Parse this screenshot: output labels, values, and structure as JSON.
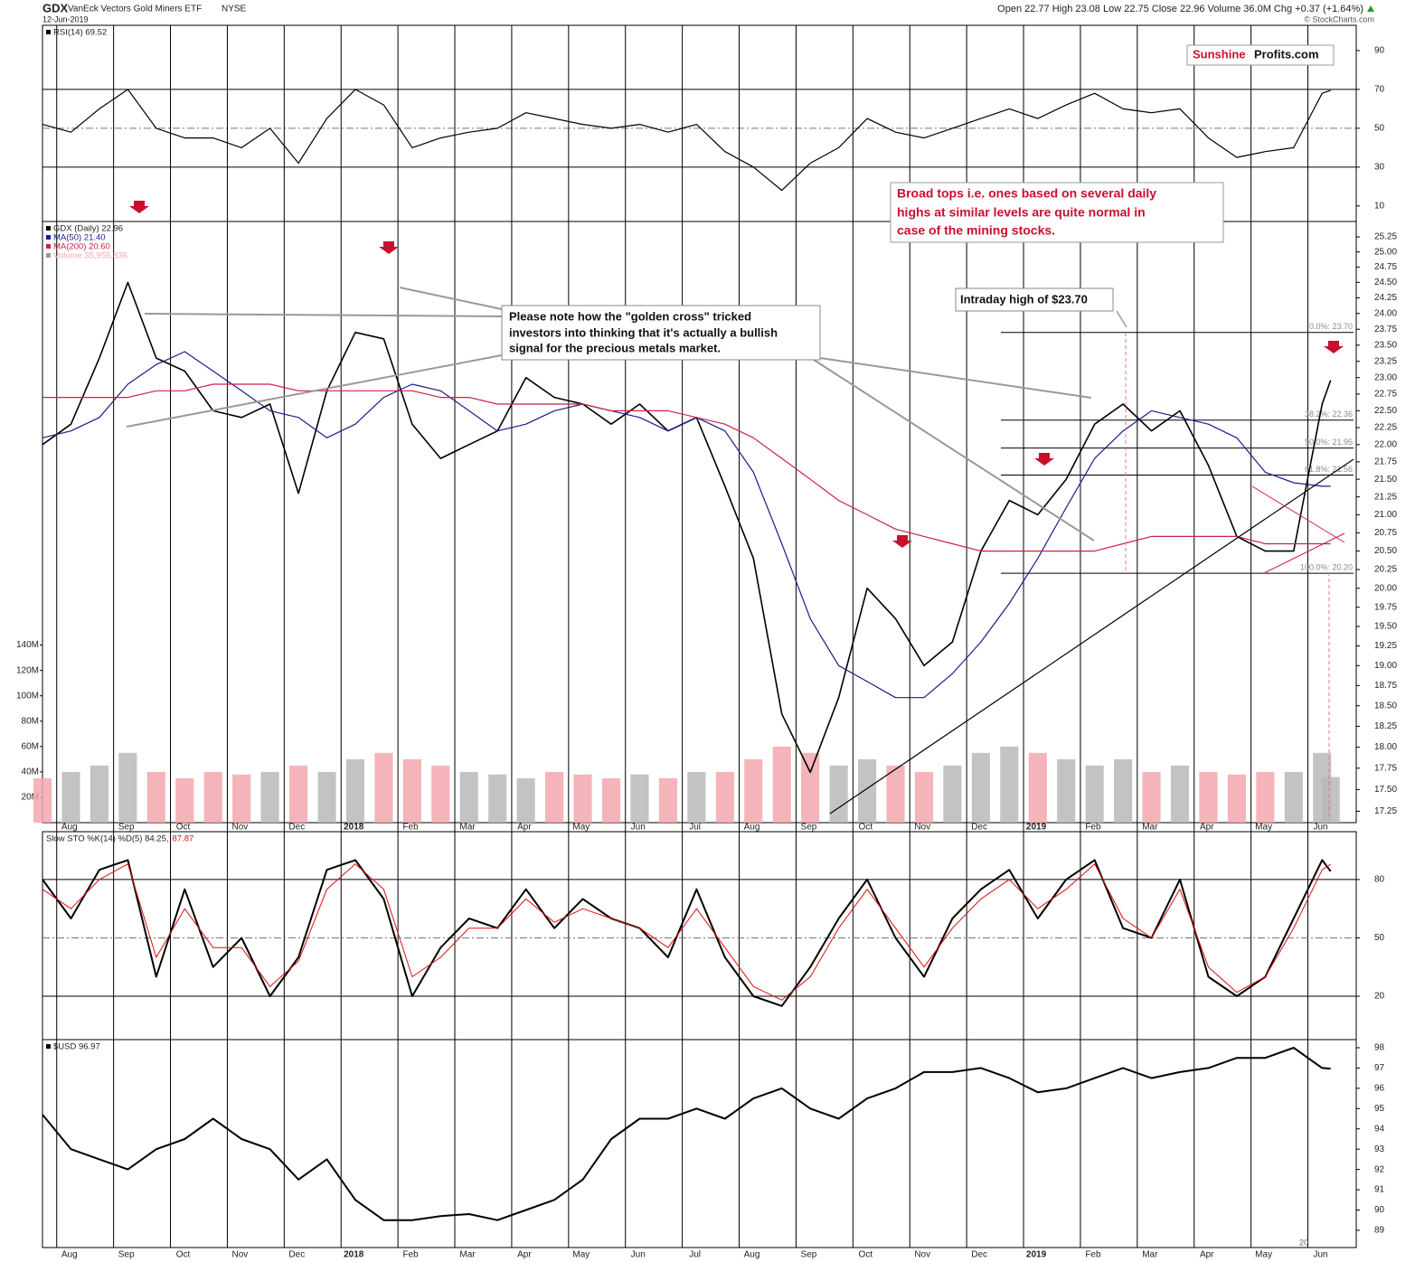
{
  "header": {
    "symbol": "GDX",
    "name": "VanEck Vectors Gold Miners ETF",
    "exchange": "NYSE",
    "date": "12-Jun-2019",
    "quote": "Open 22.77  High 23.08  Low 22.75  Close 22.96  Volume 36.0M  Chg +0.37 (+1.64%)",
    "source": "© StockCharts.com",
    "logo": [
      "Sunshine",
      "Profits.com"
    ],
    "footer": "20"
  },
  "chart_data": [
    {
      "type": "line",
      "xlim": [
        0.75,
        23.85
      ],
      "x": [
        0.75,
        1.25,
        1.75,
        2.25,
        2.75,
        3.25,
        3.75,
        4.25,
        4.75,
        5.25,
        5.75,
        6.25,
        6.75,
        7.25,
        7.75,
        8.25,
        8.75,
        9.25,
        9.75,
        10.25,
        10.75,
        11.25,
        11.75,
        12.25,
        12.75,
        13.25,
        13.75,
        14.25,
        14.75,
        15.25,
        15.75,
        16.25,
        16.75,
        17.25,
        17.75,
        18.25,
        18.75,
        19.25,
        19.75,
        20.25,
        20.75,
        21.25,
        21.75,
        22.25,
        22.75,
        23.25,
        23.4
      ],
      "ylim": [
        2,
        103
      ],
      "yticks": [
        10,
        30,
        50,
        70,
        90
      ],
      "reference_lines": [
        30,
        50,
        70
      ],
      "reference_styles": [
        "solid",
        "dashdot",
        "solid"
      ],
      "series": [
        {
          "name": "RSI(14) 69.52",
          "color": "#000000",
          "values": [
            52,
            48,
            60,
            70,
            50,
            45,
            45,
            40,
            50,
            32,
            55,
            70,
            62,
            40,
            45,
            48,
            50,
            58,
            55,
            52,
            50,
            52,
            48,
            52,
            38,
            30,
            18,
            32,
            40,
            55,
            48,
            45,
            50,
            55,
            60,
            55,
            62,
            68,
            60,
            58,
            60,
            45,
            35,
            38,
            40,
            68,
            69.52
          ]
        }
      ]
    },
    {
      "type": "line",
      "log": true,
      "xlim": [
        0.75,
        23.85
      ],
      "x": [
        0.75,
        1.25,
        1.75,
        2.25,
        2.75,
        3.25,
        3.75,
        4.25,
        4.75,
        5.25,
        5.75,
        6.25,
        6.75,
        7.25,
        7.75,
        8.25,
        8.75,
        9.25,
        9.75,
        10.25,
        10.75,
        11.25,
        11.75,
        12.25,
        12.75,
        13.25,
        13.75,
        14.25,
        14.75,
        15.25,
        15.75,
        16.25,
        16.75,
        17.25,
        17.75,
        18.25,
        18.75,
        19.25,
        19.75,
        20.25,
        20.75,
        21.25,
        21.75,
        22.25,
        22.75,
        23.25,
        23.4
      ],
      "xticks": [
        {
          "value": 1,
          "label": "Aug"
        },
        {
          "value": 2,
          "label": "Sep"
        },
        {
          "value": 3,
          "label": "Oct"
        },
        {
          "value": 4,
          "label": "Nov"
        },
        {
          "value": 5,
          "label": "Dec"
        },
        {
          "value": 6,
          "label": "2018"
        },
        {
          "value": 7,
          "label": "Feb"
        },
        {
          "value": 8,
          "label": "Mar"
        },
        {
          "value": 9,
          "label": "Apr"
        },
        {
          "value": 10,
          "label": "May"
        },
        {
          "value": 11,
          "label": "Jun"
        },
        {
          "value": 12,
          "label": "Jul"
        },
        {
          "value": 13,
          "label": "Aug"
        },
        {
          "value": 14,
          "label": "Sep"
        },
        {
          "value": 15,
          "label": "Oct"
        },
        {
          "value": 16,
          "label": "Nov"
        },
        {
          "value": 17,
          "label": "Dec"
        },
        {
          "value": 18,
          "label": "2019"
        },
        {
          "value": 19,
          "label": "Feb"
        },
        {
          "value": 20,
          "label": "Mar"
        },
        {
          "value": 21,
          "label": "Apr"
        },
        {
          "value": 22,
          "label": "May"
        },
        {
          "value": 23,
          "label": "Jun"
        }
      ],
      "ylim": [
        17.12,
        25.51
      ],
      "yticks": [
        17.25,
        {
          "value": 17.5,
          "label": "17.50"
        },
        17.75,
        {
          "value": 18,
          "label": "18.00"
        },
        18.25,
        {
          "value": 18.5,
          "label": "18.50"
        },
        18.75,
        {
          "value": 19,
          "label": "19.00"
        },
        19.25,
        {
          "value": 19.5,
          "label": "19.50"
        },
        19.75,
        {
          "value": 20,
          "label": "20.00"
        },
        20.25,
        {
          "value": 20.5,
          "label": "20.50"
        },
        20.75,
        {
          "value": 21,
          "label": "21.00"
        },
        21.25,
        {
          "value": 21.5,
          "label": "21.50"
        },
        21.75,
        {
          "value": 22,
          "label": "22.00"
        },
        22.25,
        {
          "value": 22.5,
          "label": "22.50"
        },
        22.75,
        {
          "value": 23,
          "label": "23.00"
        },
        23.25,
        {
          "value": 23.5,
          "label": "23.50"
        },
        23.75,
        {
          "value": 24,
          "label": "24.00"
        },
        24.25,
        {
          "value": 24.5,
          "label": "24.50"
        },
        24.75,
        {
          "value": 25,
          "label": "25.00"
        },
        25.25
      ],
      "y2lim": [
        0,
        474000000
      ],
      "y2ticks": [
        {
          "value": 20000000,
          "label": "20M"
        },
        {
          "value": 40000000,
          "label": "40M"
        },
        {
          "value": 60000000,
          "label": "60M"
        },
        {
          "value": 80000000,
          "label": "80M"
        },
        {
          "value": 100000000,
          "label": "100M"
        },
        {
          "value": 120000000,
          "label": "120M"
        },
        {
          "value": 140000000,
          "label": "140M"
        }
      ],
      "series": [
        {
          "name": "GDX (Daily) 22.96",
          "color": "#000000",
          "values": [
            22.0,
            22.3,
            23.3,
            24.5,
            23.3,
            23.1,
            22.5,
            22.4,
            22.6,
            21.3,
            22.8,
            23.7,
            23.6,
            22.3,
            21.8,
            22.0,
            22.2,
            23.0,
            22.7,
            22.6,
            22.3,
            22.6,
            22.2,
            22.4,
            21.4,
            20.4,
            18.4,
            17.7,
            18.6,
            20.0,
            19.6,
            19.0,
            19.3,
            20.5,
            21.2,
            21.0,
            21.5,
            22.3,
            22.6,
            22.2,
            22.5,
            21.7,
            20.7,
            20.5,
            20.5,
            22.6,
            22.96
          ]
        },
        {
          "name": "MA(50) 21.40",
          "color": "#1c1c8c",
          "values": [
            22.1,
            22.2,
            22.4,
            22.9,
            23.2,
            23.4,
            23.1,
            22.8,
            22.5,
            22.4,
            22.1,
            22.3,
            22.7,
            22.9,
            22.8,
            22.5,
            22.2,
            22.3,
            22.5,
            22.6,
            22.5,
            22.4,
            22.2,
            22.4,
            22.2,
            21.6,
            20.6,
            19.6,
            19.0,
            18.8,
            18.6,
            18.6,
            18.9,
            19.3,
            19.8,
            20.4,
            21.1,
            21.8,
            22.2,
            22.5,
            22.4,
            22.3,
            22.1,
            21.6,
            21.45,
            21.4,
            21.4
          ]
        },
        {
          "name": "MA(200) 20.60",
          "color": "#cc2244",
          "values": [
            22.7,
            22.7,
            22.7,
            22.7,
            22.8,
            22.8,
            22.9,
            22.9,
            22.9,
            22.8,
            22.8,
            22.8,
            22.8,
            22.8,
            22.7,
            22.7,
            22.6,
            22.6,
            22.6,
            22.6,
            22.5,
            22.5,
            22.5,
            22.4,
            22.3,
            22.1,
            21.8,
            21.5,
            21.2,
            21.0,
            20.8,
            20.7,
            20.6,
            20.5,
            20.5,
            20.5,
            20.5,
            20.5,
            20.6,
            20.7,
            20.7,
            20.7,
            20.7,
            20.6,
            20.6,
            20.6,
            20.6
          ]
        },
        {
          "name": "Volume 35,955,836",
          "axis": "y2",
          "color": "#f2a7ad",
          "up_color": "#b8b8b8",
          "values": [
            35000000,
            40000000,
            45000000,
            55000000,
            40000000,
            35000000,
            40000000,
            38000000,
            40000000,
            45000000,
            40000000,
            50000000,
            55000000,
            50000000,
            45000000,
            40000000,
            38000000,
            35000000,
            40000000,
            38000000,
            35000000,
            38000000,
            35000000,
            40000000,
            40000000,
            50000000,
            60000000,
            55000000,
            45000000,
            50000000,
            45000000,
            40000000,
            45000000,
            55000000,
            60000000,
            55000000,
            50000000,
            45000000,
            50000000,
            40000000,
            45000000,
            40000000,
            38000000,
            40000000,
            40000000,
            55000000,
            35955836
          ]
        }
      ],
      "fib_levels": [
        {
          "value": 23.7,
          "label": "0.0%: 23.70"
        },
        {
          "value": 22.36,
          "label": "38.2%: 22.36"
        },
        {
          "value": 21.95,
          "label": "50.0%: 21.95"
        },
        {
          "value": 21.56,
          "label": "61.8%: 21.56"
        },
        {
          "value": 20.2,
          "label": "100.0%: 20.20"
        }
      ],
      "annotations": [
        [
          "Please note how the \"golden cross\" tricked",
          "investors into thinking that it's actually a bullish",
          "signal for the precious metals market."
        ],
        [
          "Broad tops i.e. ones based on several daily",
          "highs at similar levels are quite normal in",
          "case of the mining stocks."
        ],
        [
          "Intraday high of $23.70"
        ]
      ]
    },
    {
      "type": "line",
      "xlim": [
        0.75,
        23.85
      ],
      "x": [
        0.75,
        1.25,
        1.75,
        2.25,
        2.75,
        3.25,
        3.75,
        4.25,
        4.75,
        5.25,
        5.75,
        6.25,
        6.75,
        7.25,
        7.75,
        8.25,
        8.75,
        9.25,
        9.75,
        10.25,
        10.75,
        11.25,
        11.75,
        12.25,
        12.75,
        13.25,
        13.75,
        14.25,
        14.75,
        15.25,
        15.75,
        16.25,
        16.75,
        17.25,
        17.75,
        18.25,
        18.75,
        19.25,
        19.75,
        20.25,
        20.75,
        21.25,
        21.75,
        22.25,
        22.75,
        23.25,
        23.4
      ],
      "ylim": [
        -2.3,
        104.6
      ],
      "yticks": [
        20,
        50,
        80
      ],
      "reference_lines": [
        20,
        50,
        80
      ],
      "reference_styles": [
        "solid",
        "dashdot",
        "solid"
      ],
      "series": [
        {
          "name": "Slow STO %K(14) %D(5) 84.25,",
          "color": "#000000",
          "width": 2,
          "values": [
            80,
            60,
            85,
            90,
            30,
            75,
            35,
            50,
            20,
            40,
            85,
            90,
            70,
            20,
            45,
            60,
            55,
            75,
            55,
            70,
            60,
            55,
            40,
            75,
            40,
            20,
            15,
            35,
            60,
            80,
            50,
            30,
            60,
            75,
            85,
            60,
            80,
            90,
            55,
            50,
            80,
            30,
            20,
            30,
            60,
            90,
            84.25
          ]
        },
        {
          "name": "87.87",
          "color": "#dd1111",
          "width": 1,
          "values": [
            75,
            65,
            80,
            88,
            40,
            65,
            45,
            45,
            25,
            38,
            75,
            88,
            75,
            30,
            40,
            55,
            55,
            70,
            58,
            65,
            60,
            55,
            45,
            65,
            45,
            25,
            18,
            30,
            55,
            75,
            55,
            35,
            55,
            70,
            80,
            65,
            75,
            88,
            60,
            50,
            75,
            35,
            22,
            30,
            55,
            85,
            87.87
          ]
        }
      ]
    },
    {
      "type": "line",
      "xlim": [
        0.75,
        23.85
      ],
      "x": [
        0.75,
        1.25,
        1.75,
        2.25,
        2.75,
        3.25,
        3.75,
        4.25,
        4.75,
        5.25,
        5.75,
        6.25,
        6.75,
        7.25,
        7.75,
        8.25,
        8.75,
        9.25,
        9.75,
        10.25,
        10.75,
        11.25,
        11.75,
        12.25,
        12.75,
        13.25,
        13.75,
        14.25,
        14.75,
        15.25,
        15.75,
        16.25,
        16.75,
        17.25,
        17.75,
        18.25,
        18.75,
        19.25,
        19.75,
        20.25,
        20.75,
        21.25,
        21.75,
        22.25,
        22.75,
        23.25,
        23.4
      ],
      "xticks": [
        {
          "value": 1,
          "label": "Aug"
        },
        {
          "value": 2,
          "label": "Sep"
        },
        {
          "value": 3,
          "label": "Oct"
        },
        {
          "value": 4,
          "label": "Nov"
        },
        {
          "value": 5,
          "label": "Dec"
        },
        {
          "value": 6,
          "label": "2018"
        },
        {
          "value": 7,
          "label": "Feb"
        },
        {
          "value": 8,
          "label": "Mar"
        },
        {
          "value": 9,
          "label": "Apr"
        },
        {
          "value": 10,
          "label": "May"
        },
        {
          "value": 11,
          "label": "Jun"
        },
        {
          "value": 12,
          "label": "Jul"
        },
        {
          "value": 13,
          "label": "Aug"
        },
        {
          "value": 14,
          "label": "Sep"
        },
        {
          "value": 15,
          "label": "Oct"
        },
        {
          "value": 16,
          "label": "Nov"
        },
        {
          "value": 17,
          "label": "Dec"
        },
        {
          "value": 18,
          "label": "2019"
        },
        {
          "value": 19,
          "label": "Feb"
        },
        {
          "value": 20,
          "label": "Mar"
        },
        {
          "value": 21,
          "label": "Apr"
        },
        {
          "value": 22,
          "label": "May"
        },
        {
          "value": 23,
          "label": "Jun"
        }
      ],
      "ylim": [
        88.15,
        98.4
      ],
      "yticks": [
        89,
        90,
        91,
        92,
        93,
        94,
        95,
        96,
        97,
        98
      ],
      "series": [
        {
          "name": "$USD 96.97",
          "color": "#000000",
          "width": 2,
          "values": [
            94.7,
            93.0,
            92.5,
            92.0,
            93.0,
            93.5,
            94.5,
            93.5,
            93.0,
            91.5,
            92.5,
            90.5,
            89.5,
            89.5,
            89.7,
            89.8,
            89.5,
            90.0,
            90.5,
            91.5,
            93.5,
            94.5,
            94.5,
            95.0,
            94.5,
            95.5,
            96.0,
            95.0,
            94.5,
            95.5,
            96.0,
            96.8,
            96.8,
            97.0,
            96.5,
            95.8,
            96.0,
            96.5,
            97.0,
            96.5,
            96.8,
            97.0,
            97.5,
            97.5,
            98.0,
            97.0,
            96.97
          ]
        }
      ]
    }
  ]
}
